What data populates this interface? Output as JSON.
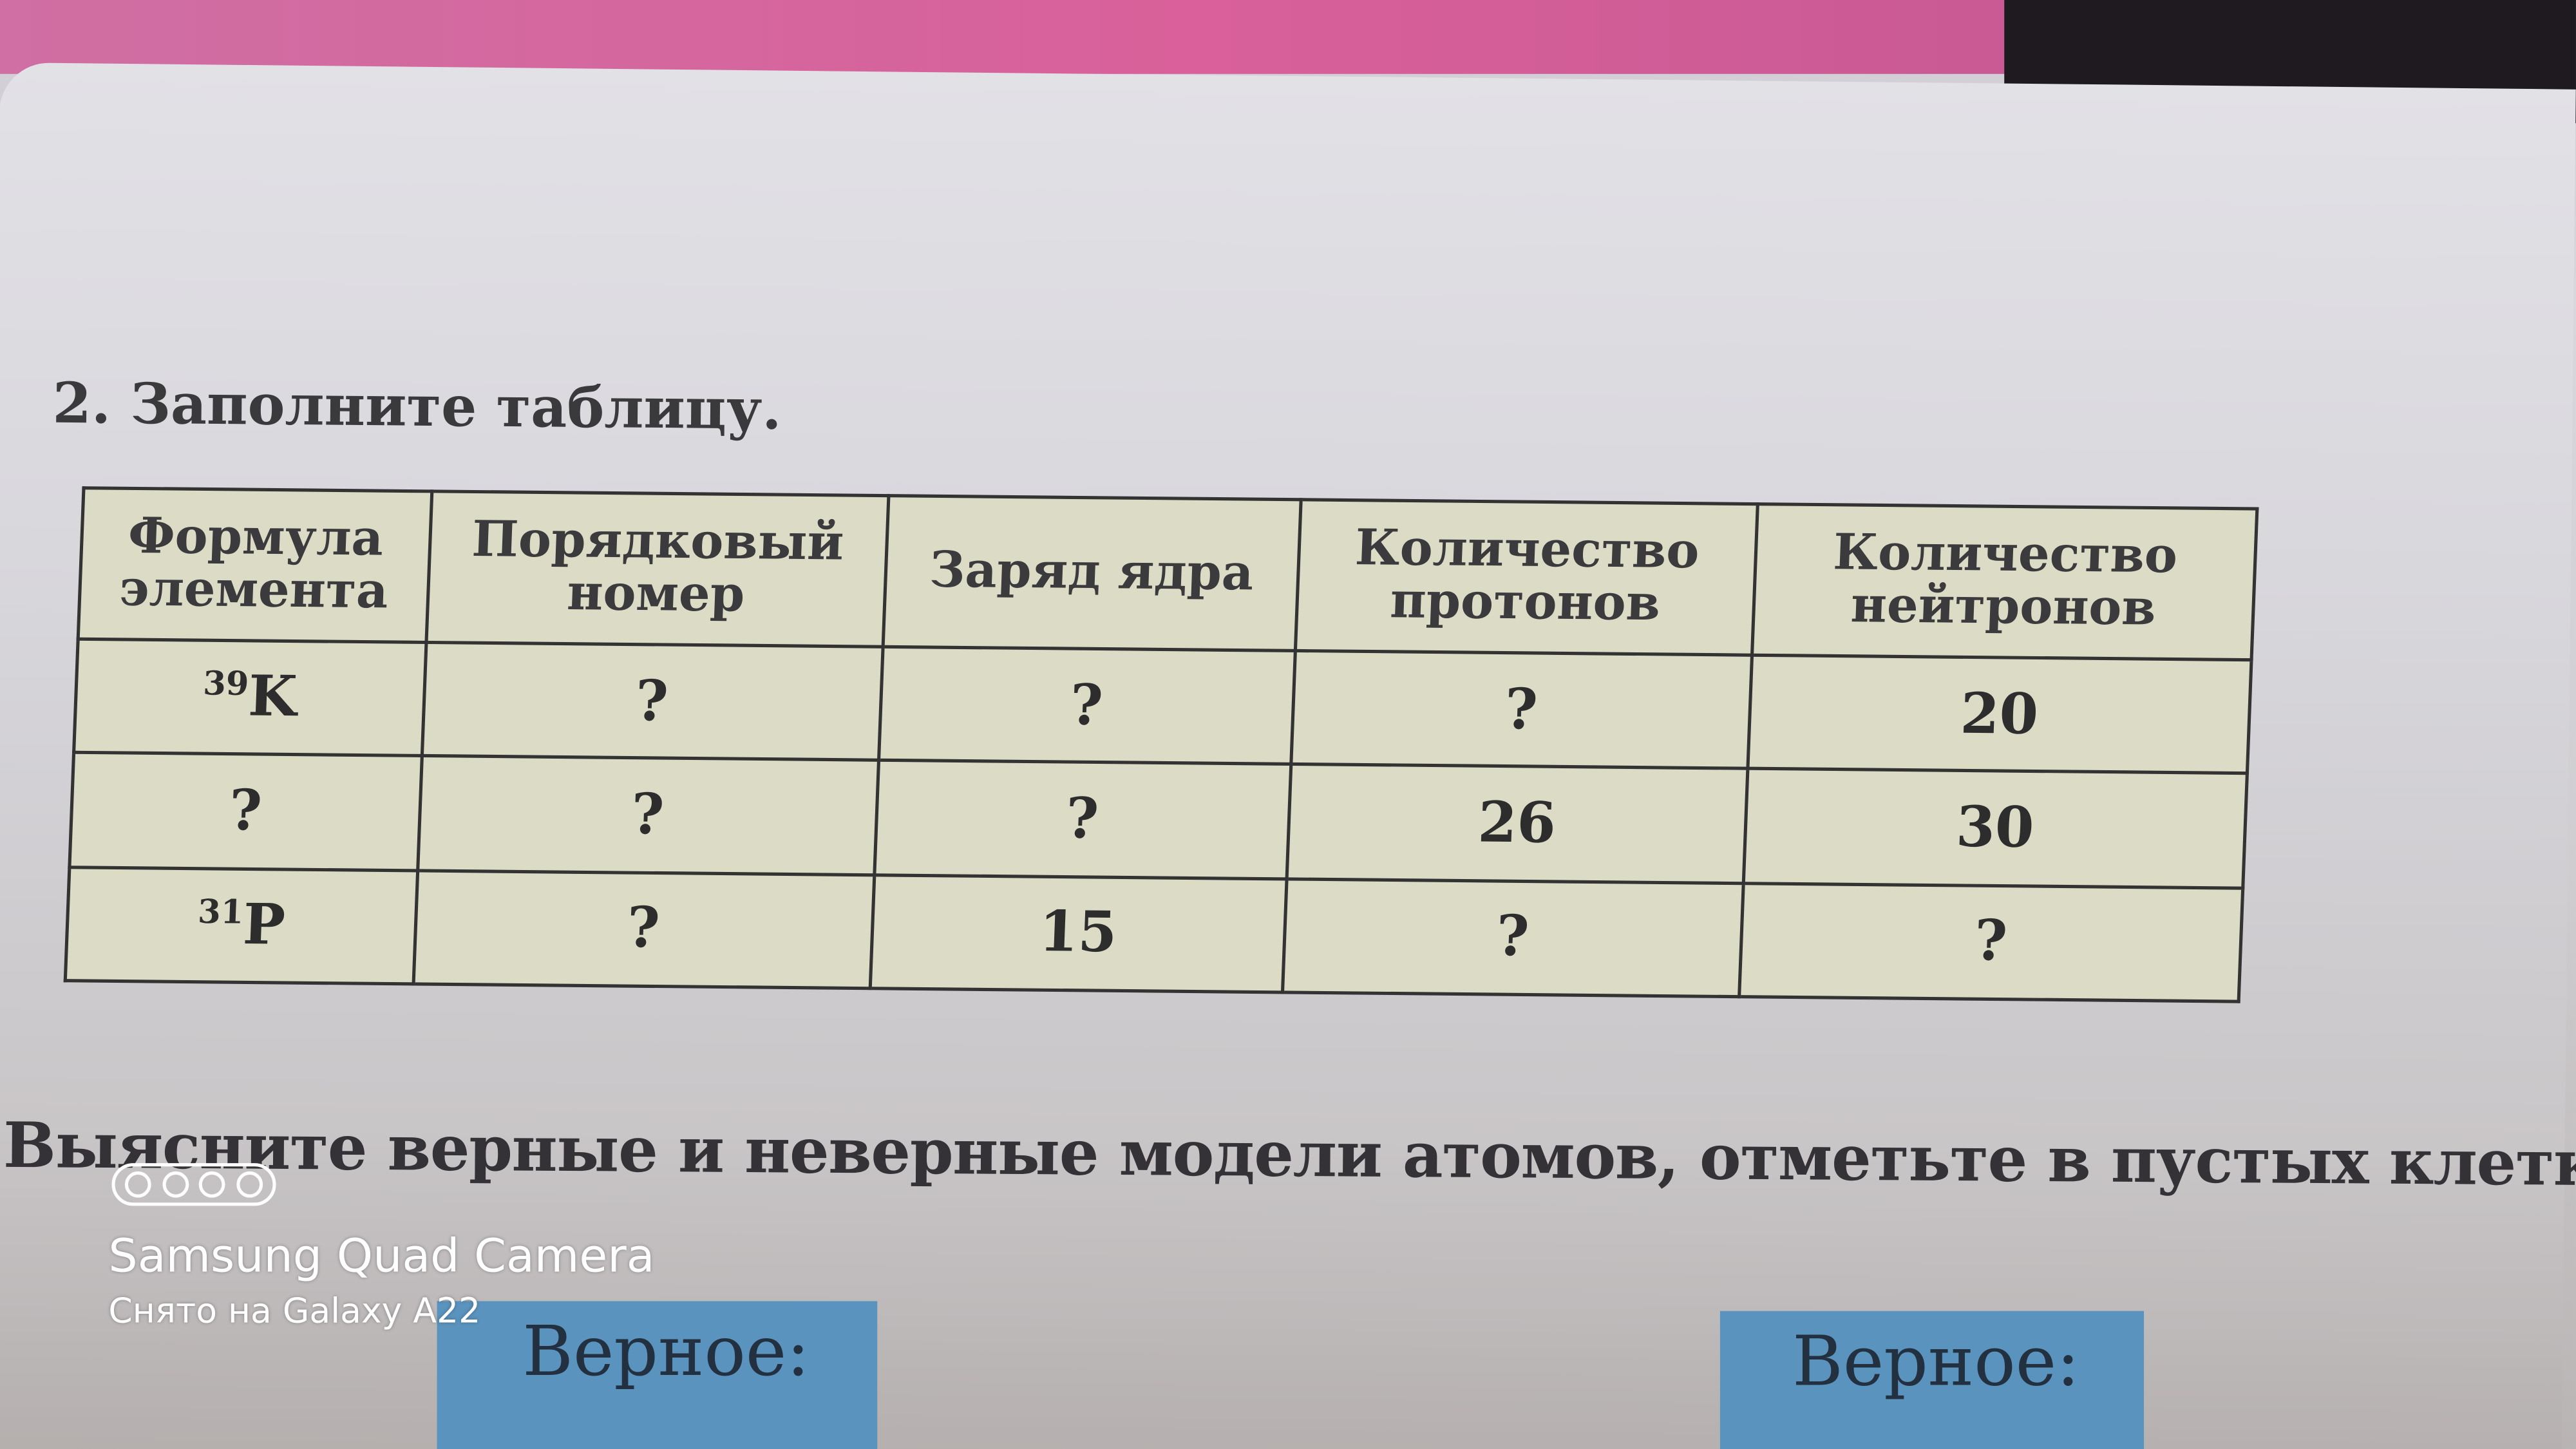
{
  "task_title": "2. Заполните таблицу.",
  "table": {
    "headers": [
      "Формула элемента",
      "Порядковый номер",
      "Заряд ядра",
      "Количество протонов",
      "Количество нейтронов"
    ],
    "rows": [
      {
        "mass": "39",
        "symbol": "K",
        "cells": [
          "?",
          "?",
          "?",
          "20"
        ]
      },
      {
        "formula": "?",
        "cells": [
          "?",
          "?",
          "26",
          "30"
        ]
      },
      {
        "mass": "31",
        "symbol": "P",
        "cells": [
          "?",
          "15",
          "?",
          "?"
        ]
      }
    ]
  },
  "task3_text": "Выясните верные и неверные модели атомов, отметьте в пустых клетках.",
  "cards": [
    "Верное:",
    "Верное:"
  ],
  "watermark": {
    "line1": "Samsung Quad Camera",
    "line2": "Снято на Galaxy A22"
  },
  "colors": {
    "card": "#5a93bd",
    "table_bg": "#dcdcc6"
  }
}
